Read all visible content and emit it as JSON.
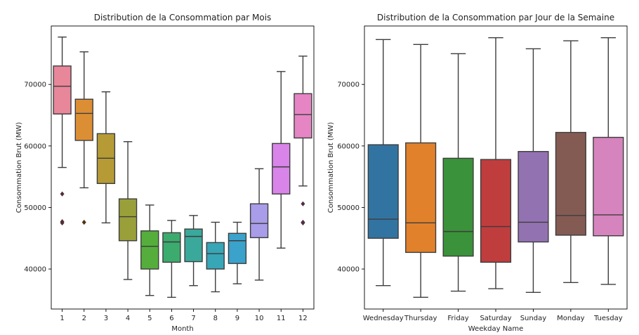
{
  "chart_data": [
    {
      "type": "box",
      "title": "Distribution de la Consommation par Mois",
      "xlabel": "Month",
      "ylabel": "Consommation Brut (MW)",
      "ylim": [
        33500,
        79500
      ],
      "yticks": [
        40000,
        50000,
        60000,
        70000
      ],
      "ytick_labels": [
        "40000",
        "50000",
        "60000",
        "70000"
      ],
      "grid": false,
      "categories": [
        "1",
        "2",
        "3",
        "4",
        "5",
        "6",
        "7",
        "8",
        "9",
        "10",
        "11",
        "12"
      ],
      "boxes": [
        {
          "min": 56500,
          "q1": 65200,
          "median": 69700,
          "q3": 73000,
          "max": 77700,
          "outliers": [
            52200,
            47700,
            47500
          ],
          "color": "#e8869a"
        },
        {
          "min": 53200,
          "q1": 60900,
          "median": 65300,
          "q3": 67600,
          "max": 75300,
          "outliers": [
            47600
          ],
          "color": "#dc8e35"
        },
        {
          "min": 47500,
          "q1": 53900,
          "median": 58000,
          "q3": 62000,
          "max": 68800,
          "outliers": [],
          "color": "#b59a36"
        },
        {
          "min": 38300,
          "q1": 44600,
          "median": 48500,
          "q3": 51400,
          "max": 60700,
          "outliers": [],
          "color": "#9aa039"
        },
        {
          "min": 35700,
          "q1": 40000,
          "median": 43700,
          "q3": 46200,
          "max": 50400,
          "outliers": [],
          "color": "#55ae3c"
        },
        {
          "min": 35400,
          "q1": 41100,
          "median": 44400,
          "q3": 45900,
          "max": 47900,
          "outliers": [],
          "color": "#3cab6e"
        },
        {
          "min": 37300,
          "q1": 41200,
          "median": 45300,
          "q3": 46500,
          "max": 48700,
          "outliers": [],
          "color": "#3aa99b"
        },
        {
          "min": 36300,
          "q1": 40000,
          "median": 42500,
          "q3": 44300,
          "max": 47600,
          "outliers": [],
          "color": "#37a6b7"
        },
        {
          "min": 37600,
          "q1": 40900,
          "median": 44600,
          "q3": 45800,
          "max": 47600,
          "outliers": [],
          "color": "#3aa2cb"
        },
        {
          "min": 38200,
          "q1": 45100,
          "median": 47400,
          "q3": 50600,
          "max": 56300,
          "outliers": [],
          "color": "#a99ce8"
        },
        {
          "min": 43400,
          "q1": 52200,
          "median": 56600,
          "q3": 60400,
          "max": 72100,
          "outliers": [],
          "color": "#d884e8"
        },
        {
          "min": 53500,
          "q1": 61300,
          "median": 65100,
          "q3": 68500,
          "max": 74600,
          "outliers": [
            50600,
            47600,
            47500
          ],
          "color": "#e585c4"
        }
      ]
    },
    {
      "type": "box",
      "title": "Distribution de la Consommation par Jour de la Semaine",
      "xlabel": "Weekday Name",
      "ylabel": "Consommation Brut (MW)",
      "ylim": [
        33500,
        79500
      ],
      "yticks": [
        40000,
        50000,
        60000,
        70000
      ],
      "ytick_labels": [
        "40000",
        "50000",
        "60000",
        "70000"
      ],
      "grid": false,
      "categories": [
        "Wednesday",
        "Thursday",
        "Friday",
        "Saturday",
        "Sunday",
        "Monday",
        "Tuesday"
      ],
      "boxes": [
        {
          "min": 37300,
          "q1": 45000,
          "median": 48100,
          "q3": 60200,
          "max": 77300,
          "outliers": [],
          "color": "#3274a1"
        },
        {
          "min": 35400,
          "q1": 42700,
          "median": 47500,
          "q3": 60500,
          "max": 76500,
          "outliers": [],
          "color": "#e1812c"
        },
        {
          "min": 36400,
          "q1": 42100,
          "median": 46100,
          "q3": 58000,
          "max": 75000,
          "outliers": [],
          "color": "#3a923a"
        },
        {
          "min": 36800,
          "q1": 41100,
          "median": 46900,
          "q3": 57800,
          "max": 77600,
          "outliers": [],
          "color": "#c03d3e"
        },
        {
          "min": 36200,
          "q1": 44400,
          "median": 47600,
          "q3": 59100,
          "max": 75800,
          "outliers": [],
          "color": "#9372b2"
        },
        {
          "min": 37800,
          "q1": 45500,
          "median": 48700,
          "q3": 62200,
          "max": 77100,
          "outliers": [],
          "color": "#845b53"
        },
        {
          "min": 37500,
          "q1": 45400,
          "median": 48800,
          "q3": 61400,
          "max": 77600,
          "outliers": [],
          "color": "#d684bd"
        }
      ]
    }
  ]
}
